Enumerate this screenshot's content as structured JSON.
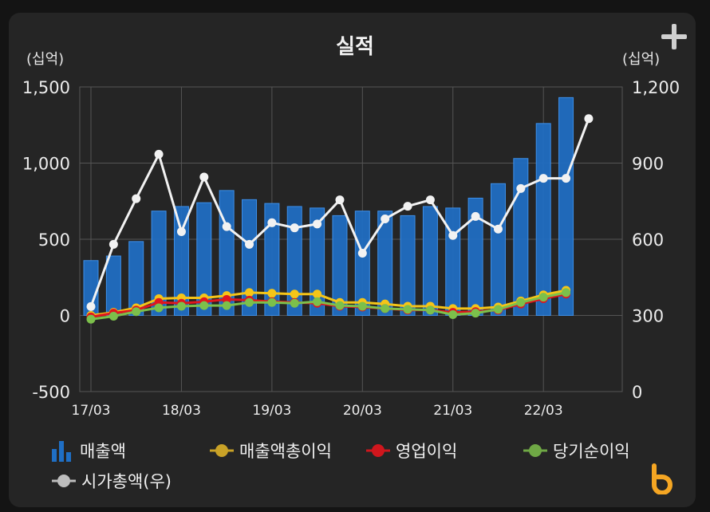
{
  "title": "실적",
  "unit_left": "(십억)",
  "unit_right": "(십억)",
  "colors": {
    "bar": "#1f6fc5",
    "bar_edge": "#3d8fe8",
    "gross": "#f5c518",
    "operating": "#e0161e",
    "net": "#7cc04b",
    "market": "#f2f2f2",
    "grid": "#555555",
    "brand": "#f5a623"
  },
  "legend": {
    "revenue": "매출액",
    "gross_profit": "매출액총이익",
    "operating_profit": "영업이익",
    "net_income": "당기순이익",
    "market_cap": "시가총액(우)"
  },
  "chart_data": {
    "type": "bar",
    "title": "실적",
    "x_tick_labels": [
      "17/03",
      "18/03",
      "19/03",
      "20/03",
      "21/03",
      "22/03"
    ],
    "y_left": {
      "label": "(십억)",
      "min": -500,
      "max": 1500,
      "ticks": [
        -500,
        0,
        500,
        1000,
        1500
      ],
      "tick_labels": [
        "-500",
        "0",
        "500",
        "1,000",
        "1,500"
      ]
    },
    "y_right": {
      "label": "(십억)",
      "min": 0,
      "max": 1200,
      "ticks": [
        0,
        300,
        600,
        900,
        1200
      ],
      "tick_labels": [
        "0",
        "300",
        "600",
        "900",
        "1,200"
      ]
    },
    "quarters": [
      "17/03",
      "17/06",
      "17/09",
      "17/12",
      "18/03",
      "18/06",
      "18/09",
      "18/12",
      "19/03",
      "19/06",
      "19/09",
      "19/12",
      "20/03",
      "20/06",
      "20/09",
      "20/12",
      "21/03",
      "21/06",
      "21/09",
      "21/12",
      "22/03",
      "22/06",
      "22/09"
    ],
    "series": [
      {
        "name": "매출액",
        "kind": "bar",
        "axis": "left",
        "values": [
          360,
          390,
          485,
          685,
          715,
          740,
          820,
          760,
          735,
          715,
          705,
          655,
          685,
          685,
          655,
          715,
          705,
          770,
          865,
          1030,
          1260,
          1430
        ]
      },
      {
        "name": "매출액총이익",
        "kind": "line",
        "axis": "left",
        "values": [
          0,
          20,
          50,
          110,
          115,
          115,
          130,
          150,
          145,
          140,
          140,
          85,
          85,
          75,
          60,
          60,
          45,
          45,
          55,
          95,
          135,
          165
        ]
      },
      {
        "name": "영업이익",
        "kind": "line",
        "axis": "left",
        "values": [
          -10,
          15,
          35,
          85,
          80,
          90,
          105,
          100,
          90,
          85,
          80,
          60,
          55,
          45,
          35,
          35,
          20,
          25,
          35,
          75,
          110,
          140
        ]
      },
      {
        "name": "당기순이익",
        "kind": "line",
        "axis": "left",
        "values": [
          -25,
          -5,
          25,
          50,
          60,
          65,
          65,
          85,
          85,
          80,
          90,
          65,
          60,
          45,
          40,
          35,
          5,
          15,
          40,
          85,
          120,
          150
        ]
      },
      {
        "name": "시가총액(우)",
        "kind": "line",
        "axis": "right",
        "values": [
          335,
          580,
          760,
          935,
          630,
          845,
          650,
          580,
          665,
          645,
          660,
          755,
          545,
          680,
          730,
          755,
          615,
          690,
          640,
          800,
          840,
          840,
          1075
        ]
      }
    ]
  }
}
